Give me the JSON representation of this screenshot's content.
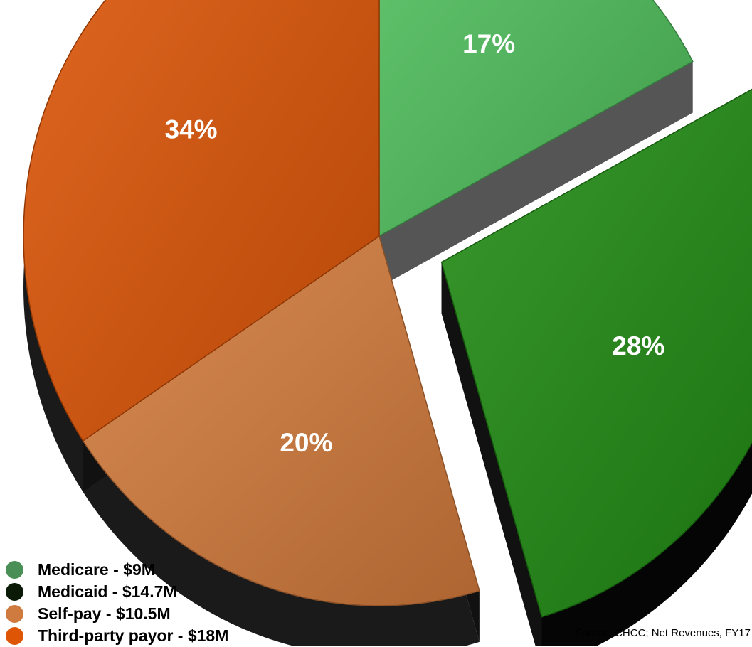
{
  "chart_data": {
    "type": "pie",
    "title": "",
    "slices": [
      {
        "label": "Medicare - $9M",
        "percent": 17,
        "value_label": "17%",
        "color": "#4fbf5c",
        "exploded": false
      },
      {
        "label": "Medicaid - $14.7M",
        "percent": 28,
        "value_label": "28%",
        "color": "#1f8a12",
        "exploded": true
      },
      {
        "label": "Self-pay - $10.5M",
        "percent": 20,
        "value_label": "20%",
        "color": "#d47b3c",
        "exploded": false
      },
      {
        "label": "Third-party payor - $18M",
        "percent": 34,
        "value_label": "34%",
        "color": "#de5506",
        "exploded": false
      }
    ],
    "legend": {
      "placement": "bottom-left",
      "items": [
        {
          "label": "Medicare - $9M",
          "color": "#4a8f56"
        },
        {
          "label": "Medicaid - $14.7M",
          "color": "#0a1a06"
        },
        {
          "label": "Self-pay - $10.5M",
          "color": "#cf7a3f"
        },
        {
          "label": "Third-party payor - $18M",
          "color": "#de5506"
        }
      ]
    },
    "source_note": "Source: CHCC; Net Revenues, FY17",
    "style": "3d-exploded"
  }
}
